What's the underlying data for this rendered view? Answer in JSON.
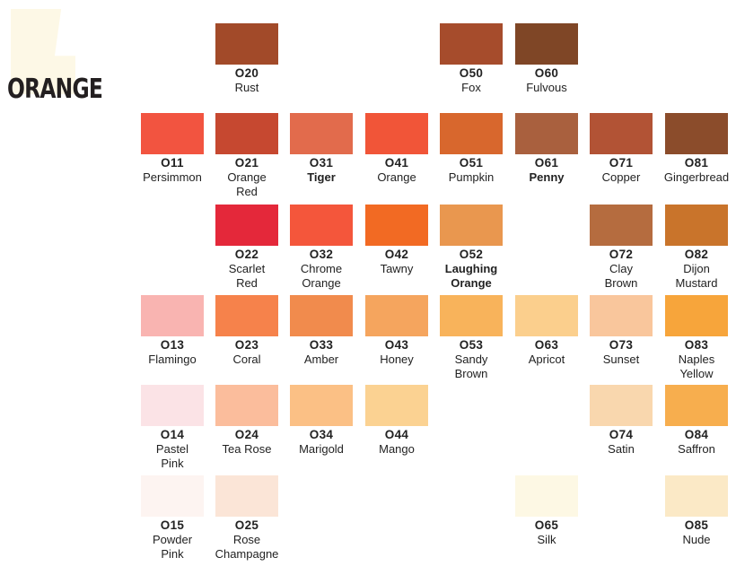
{
  "title": "ORANGE",
  "colors": [
    {
      "code": "O20",
      "name": "Rust",
      "hex": "#a24a29",
      "col": 1,
      "row": 0
    },
    {
      "code": "O50",
      "name": "Fox",
      "hex": "#a64c2c",
      "col": 4,
      "row": 0
    },
    {
      "code": "O60",
      "name": "Fulvous",
      "hex": "#7f4626",
      "col": 5,
      "row": 0
    },
    {
      "code": "O11",
      "name": "Persimmon",
      "hex": "#f25440",
      "col": 0,
      "row": 1
    },
    {
      "code": "O21",
      "name": "Orange\nRed",
      "hex": "#c64830",
      "col": 1,
      "row": 1
    },
    {
      "code": "O31",
      "name": "Tiger",
      "hex": "#e26b4c",
      "col": 2,
      "row": 1,
      "bold": true
    },
    {
      "code": "O41",
      "name": "Orange",
      "hex": "#f15538",
      "col": 3,
      "row": 1
    },
    {
      "code": "O51",
      "name": "Pumpkin",
      "hex": "#d8672d",
      "col": 4,
      "row": 1
    },
    {
      "code": "O61",
      "name": "Penny",
      "hex": "#a9603e",
      "col": 5,
      "row": 1,
      "bold": true
    },
    {
      "code": "O71",
      "name": "Copper",
      "hex": "#b25335",
      "col": 6,
      "row": 1
    },
    {
      "code": "O81",
      "name": "Gingerbread",
      "hex": "#8b4c2b",
      "col": 7,
      "row": 1
    },
    {
      "code": "O22",
      "name": "Scarlet\nRed",
      "hex": "#e4283a",
      "col": 1,
      "row": 2
    },
    {
      "code": "O32",
      "name": "Chrome\nOrange",
      "hex": "#f4563b",
      "col": 2,
      "row": 2
    },
    {
      "code": "O42",
      "name": "Tawny",
      "hex": "#f26a23",
      "col": 3,
      "row": 2
    },
    {
      "code": "O52",
      "name": "Laughing\nOrange",
      "hex": "#e9974f",
      "col": 4,
      "row": 2,
      "bold": true
    },
    {
      "code": "O72",
      "name": "Clay\nBrown",
      "hex": "#b56c3f",
      "col": 6,
      "row": 2
    },
    {
      "code": "O82",
      "name": "Dijon\nMustard",
      "hex": "#c9742b",
      "col": 7,
      "row": 2
    },
    {
      "code": "O13",
      "name": "Flamingo",
      "hex": "#f9b4b1",
      "col": 0,
      "row": 3
    },
    {
      "code": "O23",
      "name": "Coral",
      "hex": "#f6824b",
      "col": 1,
      "row": 3
    },
    {
      "code": "O33",
      "name": "Amber",
      "hex": "#f18b4d",
      "col": 2,
      "row": 3
    },
    {
      "code": "O43",
      "name": "Honey",
      "hex": "#f5a55e",
      "col": 3,
      "row": 3
    },
    {
      "code": "O53",
      "name": "Sandy\nBrown",
      "hex": "#f8b35b",
      "col": 4,
      "row": 3
    },
    {
      "code": "O63",
      "name": "Apricot",
      "hex": "#fbcf8d",
      "col": 5,
      "row": 3
    },
    {
      "code": "O73",
      "name": "Sunset",
      "hex": "#f9c69c",
      "col": 6,
      "row": 3
    },
    {
      "code": "O83",
      "name": "Naples\nYellow",
      "hex": "#f7a53b",
      "col": 7,
      "row": 3
    },
    {
      "code": "O14",
      "name": "Pastel\nPink",
      "hex": "#fbe3e6",
      "col": 0,
      "row": 4
    },
    {
      "code": "O24",
      "name": "Tea Rose",
      "hex": "#fbbd9c",
      "col": 1,
      "row": 4
    },
    {
      "code": "O34",
      "name": "Marigold",
      "hex": "#fbc085",
      "col": 2,
      "row": 4
    },
    {
      "code": "O44",
      "name": "Mango",
      "hex": "#fbd292",
      "col": 3,
      "row": 4
    },
    {
      "code": "O74",
      "name": "Satin",
      "hex": "#f9d7ae",
      "col": 6,
      "row": 4
    },
    {
      "code": "O84",
      "name": "Saffron",
      "hex": "#f7ae4e",
      "col": 7,
      "row": 4
    },
    {
      "code": "O15",
      "name": "Powder\nPink",
      "hex": "#fdf4f1",
      "col": 0,
      "row": 5
    },
    {
      "code": "O25",
      "name": "Rose\nChampagne",
      "hex": "#fbe5d7",
      "col": 1,
      "row": 5
    },
    {
      "code": "O65",
      "name": "Silk",
      "hex": "#fdf8e4",
      "col": 5,
      "row": 5
    },
    {
      "code": "O85",
      "name": "Nude",
      "hex": "#fbe9c6",
      "col": 7,
      "row": 5
    }
  ]
}
